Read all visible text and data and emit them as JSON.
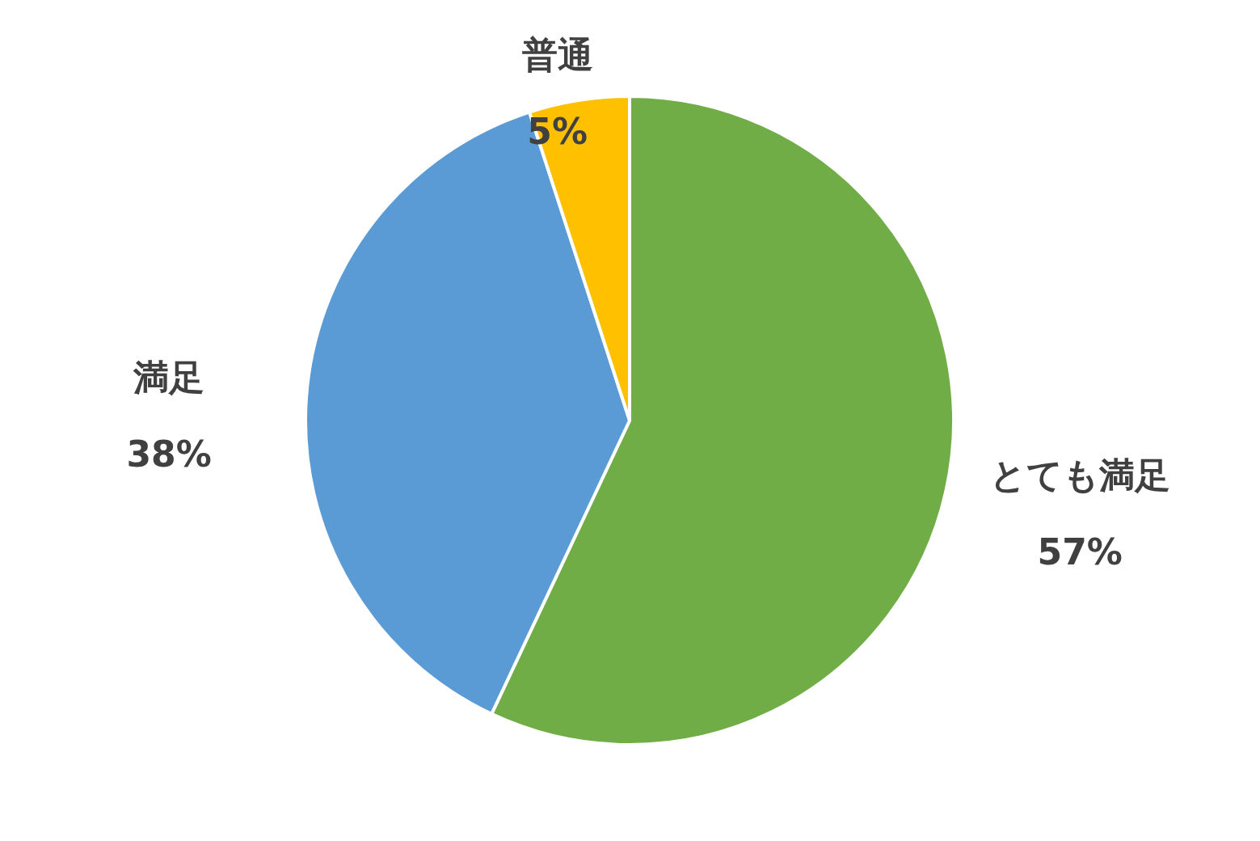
{
  "chart_data": {
    "type": "pie",
    "categories": [
      "とても満足",
      "満足",
      "普通"
    ],
    "values": [
      57,
      38,
      5
    ],
    "colors": [
      "#70ad47",
      "#5b9bd5",
      "#ffc000"
    ],
    "value_labels": [
      "57%",
      "38%",
      "5%"
    ]
  }
}
